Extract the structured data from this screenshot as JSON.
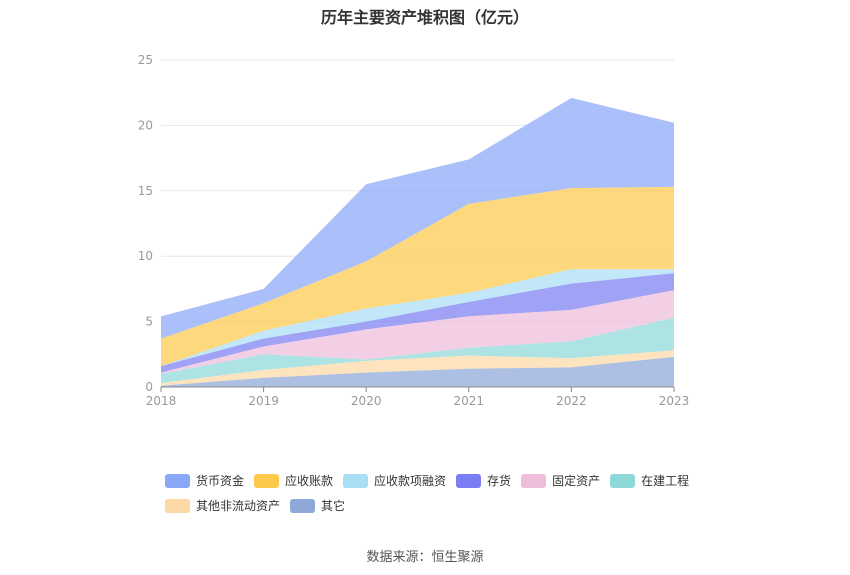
{
  "chart_data": {
    "type": "area",
    "stacked": true,
    "title": "历年主要资产堆积图（亿元）",
    "x": [
      "2018",
      "2019",
      "2020",
      "2021",
      "2022",
      "2023"
    ],
    "ylim": [
      0,
      25
    ],
    "yticks": [
      "0",
      "5",
      "10",
      "15",
      "20",
      "25"
    ],
    "grid": true,
    "legend_position": "bottom",
    "series": [
      {
        "name": "货币资金",
        "color": "#8aa8f8",
        "values": [
          1.7,
          1.1,
          5.9,
          3.4,
          6.9,
          4.9
        ]
      },
      {
        "name": "应收账款",
        "color": "#fcc94b",
        "values": [
          2.1,
          2.1,
          3.6,
          6.8,
          6.2,
          6.3
        ]
      },
      {
        "name": "应收款项融资",
        "color": "#a9def5",
        "values": [
          0.0,
          0.6,
          1.0,
          0.7,
          1.1,
          0.3
        ]
      },
      {
        "name": "存货",
        "color": "#7b7ef2",
        "values": [
          0.5,
          0.6,
          0.6,
          1.1,
          2.0,
          1.3
        ]
      },
      {
        "name": "固定资产",
        "color": "#efbddc",
        "values": [
          0.1,
          0.6,
          2.3,
          2.4,
          2.4,
          2.1
        ]
      },
      {
        "name": "在建工程",
        "color": "#8ed9d8",
        "values": [
          0.7,
          1.2,
          0.1,
          0.6,
          1.3,
          2.5
        ]
      },
      {
        "name": "其他非流动资产",
        "color": "#fdd9a5",
        "values": [
          0.2,
          0.6,
          0.9,
          1.0,
          0.7,
          0.5
        ]
      },
      {
        "name": "其它",
        "color": "#8ea8d8",
        "values": [
          0.1,
          0.7,
          1.1,
          1.4,
          1.5,
          2.3
        ]
      }
    ]
  },
  "source_text": "数据来源：恒生聚源"
}
